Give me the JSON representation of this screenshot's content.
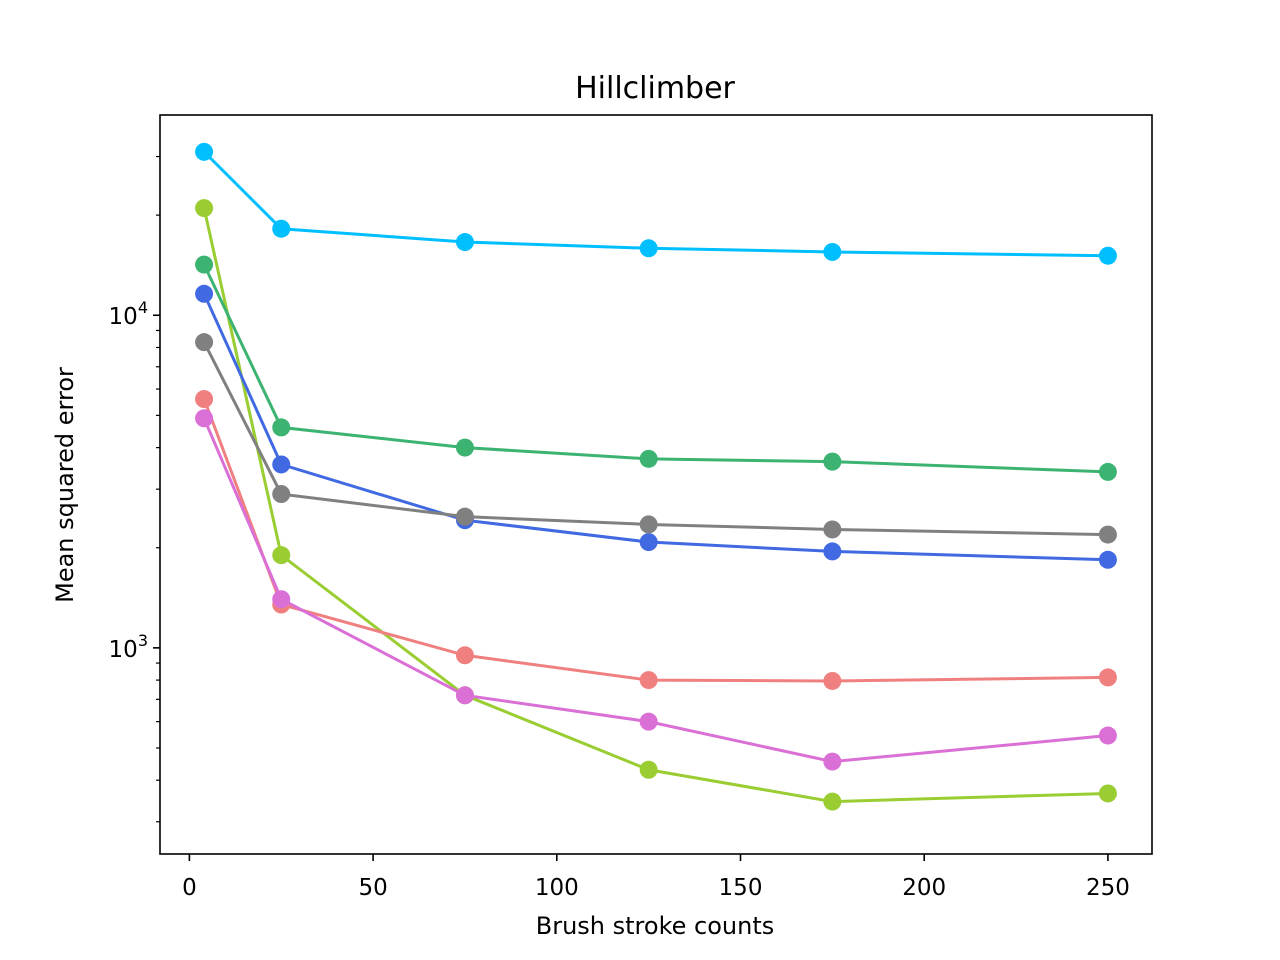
{
  "chart_data": {
    "type": "line",
    "title": "Hillclimber",
    "xlabel": "Brush stroke counts",
    "ylabel": "Mean squared error",
    "yscale": "log",
    "xlim": [
      -8,
      262
    ],
    "ylim": [
      240,
      40000
    ],
    "grid": false,
    "x": [
      4,
      25,
      75,
      125,
      175,
      250
    ],
    "x_ticks": [
      0,
      50,
      100,
      150,
      200,
      250
    ],
    "x_tick_labels": [
      "0",
      "50",
      "100",
      "150",
      "200",
      "250"
    ],
    "y_major_ticks": [
      {
        "value": 1000,
        "base": "10",
        "exp": "3"
      },
      {
        "value": 10000,
        "base": "10",
        "exp": "4"
      }
    ],
    "y_minor_ticks": [
      300,
      400,
      500,
      600,
      700,
      800,
      900,
      2000,
      3000,
      4000,
      5000,
      6000,
      7000,
      8000,
      9000,
      20000,
      30000
    ],
    "series": [
      {
        "color": "#00bfff",
        "values": [
          31000,
          18200,
          16600,
          15900,
          15500,
          15100
        ]
      },
      {
        "color": "#9acd32",
        "values": [
          21000,
          1900,
          720,
          430,
          345,
          365
        ]
      },
      {
        "color": "#3cb371",
        "values": [
          14200,
          4600,
          4000,
          3700,
          3630,
          3380
        ]
      },
      {
        "color": "#4169e1",
        "values": [
          11600,
          3560,
          2420,
          2080,
          1950,
          1840
        ]
      },
      {
        "color": "#808080",
        "values": [
          8300,
          2900,
          2480,
          2350,
          2270,
          2190
        ]
      },
      {
        "color": "#f08080",
        "values": [
          5600,
          1350,
          950,
          800,
          795,
          815
        ]
      },
      {
        "color": "#da70d6",
        "values": [
          4900,
          1400,
          720,
          600,
          455,
          545
        ]
      }
    ]
  }
}
